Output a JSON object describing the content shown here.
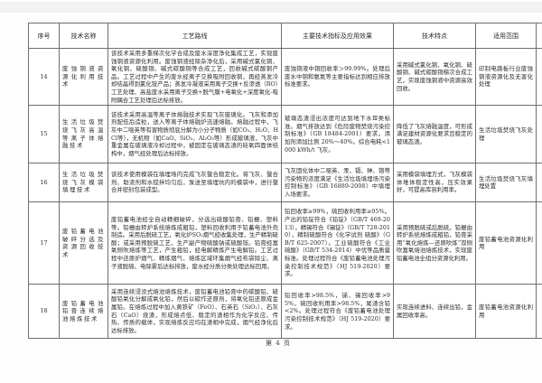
{
  "page": {
    "footer": "第 4 页"
  },
  "table": {
    "columns": [
      {
        "key": "id",
        "label": "序号"
      },
      {
        "key": "name",
        "label": "技术名称"
      },
      {
        "key": "process",
        "label": "工艺路线"
      },
      {
        "key": "indicators",
        "label": "主要技术指标及应用效果"
      },
      {
        "key": "features",
        "label": "技术特点"
      },
      {
        "key": "scope",
        "label": "适用范围"
      },
      {
        "key": "category",
        "label": "技术类别"
      }
    ],
    "rows": [
      {
        "id": "14",
        "name": "废蚀铜液资源化利用技术",
        "process": "该技术采用多重梯次化学合成及废水深度净化集成工艺，实现废蚀铜液资源化利用。废蚀铜液经除杂净化后，采用碱式氯化铜、氧化铜、硫酸铜、碱式碳酸铜等合成工艺，回收碱式碳酸铜产品。工艺过程中产生的废水经离子交换吸附回收铜，再经蒸发冷却结晶得到氯化铵产品；蒸发冷凝液采用离子交换+反渗透（RO）工艺处理、高盐废水采用离子交换+脱气膜+电氧化+深度氧化-吸附耦合工艺处理后达标排放。",
        "indicators": "废蚀铜液中铜回收率＞99.99%。处理后废水中铜和氨氮等主要指标达到相应排放标准要求。",
        "features": "采用碱式氯化铜、氧化铜、硫酸铜、碱式碳酸铜梯次合成工艺，实现废蚀铜液中资源高效回收。",
        "scope": "印制电路板行业废蚀铜液资源化及无害化处理",
        "category": "推广技术"
      },
      {
        "id": "15",
        "name": "生活垃圾焚烧飞灰高温等离子体熔融技术",
        "process": "该技术采用高温等离子体熔融技术实现飞灰玻璃化。飞灰和添加剂配伍后造粒，送入等离子体熔融炉迅速熔融。熔融过程中，飞灰中二噁英等有害物质彻底分解为小分子物质（如CO₂、H₂O、HCl等），无机物（如CaO、SiO₂、Al₂O₃等）形成玻璃液，飞灰中重金属在玻璃液冷却过程中，被固定在玻璃态渣的硅氧四面体结构中，烟气经处理后达标排放。",
        "indicators": "玻璃态渣浸出浓度可达到地下水Ⅲ类标准。烟气排放达到《危险废物焚烧污染控制标准》（GB 18484-2001）要求。添加剂添加比例 20%～40%。综合电耗<1000 kWh/t 飞灰。",
        "features": "降低了飞灰熔融温度，可形成满足建材资源化要求且稳定的玻璃态渣。",
        "scope": "生活垃圾焚烧飞灰处理",
        "category": "示范技术"
      },
      {
        "id": "16",
        "name": "生活垃圾焚烧飞灰模袋填埋技术",
        "process": "该技术使用模袋在填埋场内完成飞灰螯合稳定化。将飞灰、螯合剂、助流剂和水搅拌均匀后，泵送至填埋坑内的模袋中，进行螯合并密封包装成型。",
        "indicators": "飞灰固化体中二噁英、汞、镉、砷、铬等污染物的浓度满足《生活垃圾填埋场污染控制标准》（GB 16889-2008）中填埋入场要求。",
        "features": "采用模袋填埋方式，飞灰模袋体堆体稳定性高，压实效果好，可提高库容利用率。",
        "scope": "生活垃圾焚烧飞灰填埋处置",
        "category": "示范技术"
      },
      {
        "id": "17",
        "name": "废铅蓄电池破碎分选及资源回收技术",
        "process": "废铅蓄电池经全自动精细破碎，分选出硫酸铅膏、铅栅、塑料等。铅栅由转炉系统熔炼成粗铅，塑料回收利用于铅蓄电池外壳制造。采用后脱硫工艺，氧化炉SO₂烟气经收集处理，生产精制硫酸；或采用预脱硫工艺，生产副产物硫酸钠或硫酸铵。铅膏经富氧侧吹熔炼等工艺，产生粗铅，经电解精炼产生电解铅。工艺过程中还原炉烟气、精炼烟气、熔炼区域环集烟气经布袋除尘、离子液脱硫、电除雾后达标排放，废水经分质分类处理达标回用。",
        "indicators": "铅回收率≥99%，硫回收利用率≥95%。产出的铅锭符合《铅锭》（GB/T 469-2013），精锡符合《锡锭》（GB/T 728-2010），精制硫酸符合《化学试剂 硫酸》（GB/T 625-2007）。工业硫酸符合《工业硫酸》（GB/T 534-2014）中优等品质量标准。处理过程符合《废铅蓄电池处理污染控制技术规范》（HJ 519-2020）要求。",
        "features": "采用预脱硫或后脱硫，铅栅由转炉系统熔炼成粗铅，铅膏采用“氧化熔炼—还原吹炼”双侧吹富氧熔池熔炼技术，实现废铅蓄电池全组分资源化利用。",
        "scope": "废铅蓄电池资源化利用",
        "category": "推广技术"
      },
      {
        "id": "18",
        "name": "废铅蓄电池铅膏连续熔池熔炼技术",
        "process": "采用连续浸没式熔池熔炼技术，废铅蓄电池铅膏中的碳酸铅、硫酸铅氧化分解成氧化铅，然后以碳作还原剂，将氧化铅还原成金属铅。在熔炼过程中加入黄铁矿（FeO）、石英石（SiO₂）、石灰石（CaO）烧渣，形成熔点低、稳定的渣相作为化学反应、传热、传质的载体，实现熔炼反应均在渣相中完成，烟气经净化后达标排放。",
        "indicators": "铅回收率>98.5%，锑、锡回收率>95%，硫回收利用率>98.5%，尾渣含铅<2%。处理过程符合《废铅蓄电池处理污染控制技术规范》（HJ 519-2020）要求。",
        "features": "实现连续进料、连续出铅，金属回收率高。",
        "scope": "废铅蓄电池资源化利用",
        "category": "推广技术"
      }
    ]
  }
}
